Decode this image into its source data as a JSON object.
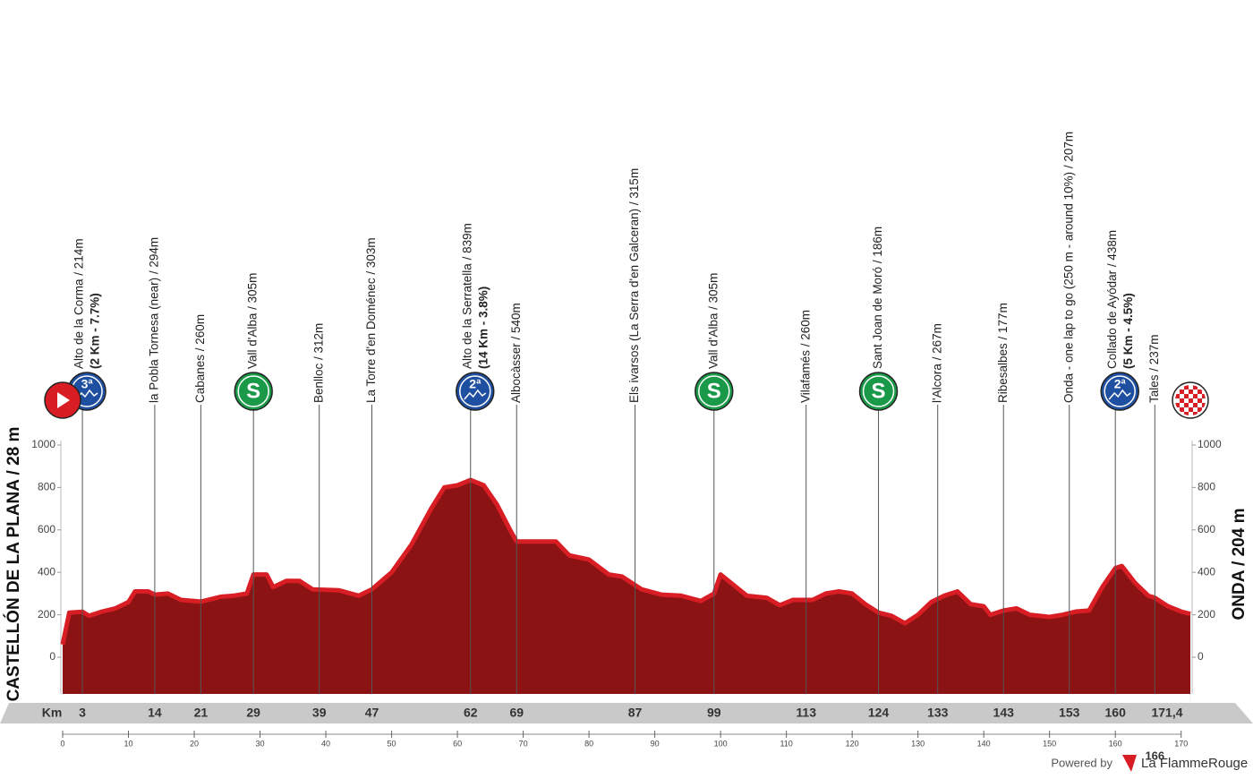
{
  "chart_data": {
    "type": "area",
    "start_label": "CASTELLÓN DE LA PLANA / 28 m",
    "finish_label": "ONDA / 204 m",
    "km_label": "Km",
    "color": "#8c1313",
    "edge_color": "#d81e24",
    "x": [
      0,
      1,
      3,
      4,
      6,
      8,
      10,
      11,
      13,
      14,
      16,
      18,
      21,
      24,
      26,
      28,
      29,
      31,
      32,
      34,
      36,
      38,
      42,
      45,
      47,
      50,
      53,
      56,
      58,
      60,
      62,
      64,
      66,
      68,
      69,
      72,
      75,
      77,
      80,
      83,
      85,
      88,
      91,
      94,
      97,
      99,
      100,
      102,
      104,
      107,
      109,
      111,
      114,
      116,
      118,
      120,
      122,
      124,
      126,
      128,
      130,
      132,
      134,
      136,
      138,
      140,
      141,
      143,
      145,
      147,
      150,
      152,
      154,
      156,
      158,
      160,
      161,
      163,
      165,
      166,
      168,
      170,
      171.4
    ],
    "values": [
      60,
      210,
      214,
      195,
      215,
      230,
      260,
      310,
      310,
      295,
      300,
      270,
      262,
      285,
      290,
      300,
      390,
      390,
      330,
      360,
      360,
      320,
      315,
      290,
      320,
      400,
      530,
      700,
      800,
      810,
      835,
      810,
      720,
      600,
      545,
      545,
      545,
      480,
      460,
      390,
      380,
      320,
      295,
      290,
      265,
      300,
      390,
      340,
      290,
      280,
      245,
      270,
      270,
      300,
      310,
      300,
      250,
      210,
      195,
      160,
      200,
      260,
      290,
      310,
      250,
      240,
      200,
      220,
      230,
      200,
      190,
      200,
      215,
      220,
      330,
      420,
      430,
      350,
      290,
      280,
      240,
      215,
      204
    ],
    "xlim": [
      0,
      171.4
    ],
    "ylim": [
      -173,
      1000
    ],
    "yticks": [
      0,
      200,
      400,
      600,
      800,
      1000
    ],
    "xticks": [
      0,
      10,
      20,
      30,
      40,
      50,
      60,
      70,
      80,
      90,
      100,
      110,
      120,
      130,
      140,
      150,
      160,
      170
    ],
    "finish_km": {
      "value": 171.4,
      "label": "171,4"
    },
    "waypoints": [
      {
        "km": 3,
        "label": "Alto de la Corma / 214m",
        "detail": "(2 Km - 7.7%)",
        "icon": "3ª"
      },
      {
        "km": 14,
        "label": "la Pobla Tornesa (near) / 294m"
      },
      {
        "km": 21,
        "label": "Cabanes / 260m"
      },
      {
        "km": 29,
        "label": "Vall d'Alba / 305m",
        "icon": "S"
      },
      {
        "km": 39,
        "label": "Benlloc / 312m"
      },
      {
        "km": 47,
        "label": "La Torre d'en Doménec / 303m"
      },
      {
        "km": 62,
        "label": "Alto de la Serratella / 839m",
        "detail": "(14 Km - 3.8%)",
        "icon": "2ª"
      },
      {
        "km": 69,
        "label": "Albocàsser / 540m"
      },
      {
        "km": 87,
        "label": "Els ivarsos (La Serra d'en Galceran) / 315m"
      },
      {
        "km": 99,
        "label": "Vall d'Alba / 305m",
        "icon": "S"
      },
      {
        "km": 113,
        "label": "Vilafamés / 260m"
      },
      {
        "km": 124,
        "label": "Sant Joan de Moró / 186m",
        "icon": "S"
      },
      {
        "km": 133,
        "label": "l'Alcora / 267m"
      },
      {
        "km": 143,
        "label": "Ribesalbes / 177m"
      },
      {
        "km": 153,
        "label": "Onda - one lap to go  (250 m - around 10%) / 207m"
      },
      {
        "km": 160,
        "label": "Collado de Ayódar / 438m",
        "detail": "(5 Km - 4.5%)",
        "icon": "2ª"
      },
      {
        "km": 166,
        "label": "Tales / 237m",
        "km_position": "below"
      }
    ]
  },
  "footer": {
    "powered": "Powered by",
    "brand": "La FlammeRouge"
  }
}
